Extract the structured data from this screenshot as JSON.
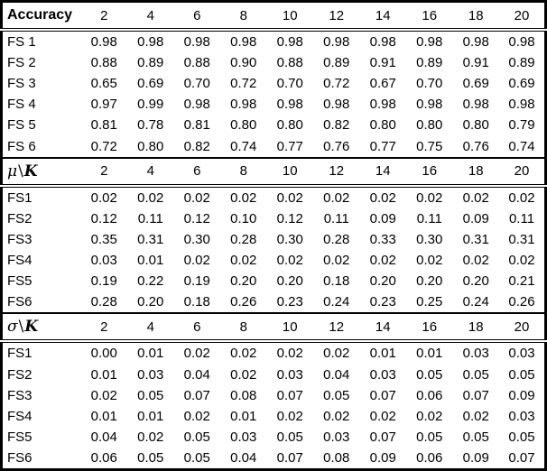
{
  "table": {
    "colors": {
      "text": "#000000",
      "background": "#ffffff",
      "border": "#000000"
    },
    "column_headers": [
      "2",
      "4",
      "6",
      "8",
      "10",
      "12",
      "14",
      "16",
      "18",
      "20"
    ],
    "sections": [
      {
        "header": {
          "type": "text",
          "label": "Accuracy"
        },
        "rows": [
          {
            "label": "FS 1",
            "values": [
              "0.98",
              "0.98",
              "0.98",
              "0.98",
              "0.98",
              "0.98",
              "0.98",
              "0.98",
              "0.98",
              "0.98"
            ]
          },
          {
            "label": "FS 2",
            "values": [
              "0.88",
              "0.89",
              "0.88",
              "0.90",
              "0.88",
              "0.89",
              "0.91",
              "0.89",
              "0.91",
              "0.89"
            ]
          },
          {
            "label": "FS 3",
            "values": [
              "0.65",
              "0.69",
              "0.70",
              "0.72",
              "0.70",
              "0.72",
              "0.67",
              "0.70",
              "0.69",
              "0.69"
            ]
          },
          {
            "label": "FS 4",
            "values": [
              "0.97",
              "0.99",
              "0.98",
              "0.98",
              "0.98",
              "0.98",
              "0.98",
              "0.98",
              "0.98",
              "0.98"
            ]
          },
          {
            "label": "FS 5",
            "values": [
              "0.81",
              "0.78",
              "0.81",
              "0.80",
              "0.80",
              "0.82",
              "0.80",
              "0.80",
              "0.80",
              "0.79"
            ]
          },
          {
            "label": "FS 6",
            "values": [
              "0.72",
              "0.80",
              "0.82",
              "0.74",
              "0.77",
              "0.76",
              "0.77",
              "0.75",
              "0.76",
              "0.74"
            ]
          }
        ]
      },
      {
        "header": {
          "type": "math",
          "symbol": "μ",
          "separator": "\\",
          "variable": "K"
        },
        "rows": [
          {
            "label": "FS1",
            "values": [
              "0.02",
              "0.02",
              "0.02",
              "0.02",
              "0.02",
              "0.02",
              "0.02",
              "0.02",
              "0.02",
              "0.02"
            ]
          },
          {
            "label": "FS2",
            "values": [
              "0.12",
              "0.11",
              "0.12",
              "0.10",
              "0.12",
              "0.11",
              "0.09",
              "0.11",
              "0.09",
              "0.11"
            ]
          },
          {
            "label": "FS3",
            "values": [
              "0.35",
              "0.31",
              "0.30",
              "0.28",
              "0.30",
              "0.28",
              "0.33",
              "0.30",
              "0.31",
              "0.31"
            ]
          },
          {
            "label": "FS4",
            "values": [
              "0.03",
              "0.01",
              "0.02",
              "0.02",
              "0.02",
              "0.02",
              "0.02",
              "0.02",
              "0.02",
              "0.02"
            ]
          },
          {
            "label": "FS5",
            "values": [
              "0.19",
              "0.22",
              "0.19",
              "0.20",
              "0.20",
              "0.18",
              "0.20",
              "0.20",
              "0.20",
              "0.21"
            ]
          },
          {
            "label": "FS6",
            "values": [
              "0.28",
              "0.20",
              "0.18",
              "0.26",
              "0.23",
              "0.24",
              "0.23",
              "0.25",
              "0.24",
              "0.26"
            ]
          }
        ]
      },
      {
        "header": {
          "type": "math",
          "symbol": "σ",
          "separator": "\\",
          "variable": "K"
        },
        "rows": [
          {
            "label": "FS1",
            "values": [
              "0.00",
              "0.01",
              "0.02",
              "0.02",
              "0.02",
              "0.02",
              "0.01",
              "0.01",
              "0.03",
              "0.03"
            ]
          },
          {
            "label": "FS2",
            "values": [
              "0.01",
              "0.03",
              "0.04",
              "0.02",
              "0.03",
              "0.04",
              "0.03",
              "0.05",
              "0.05",
              "0.05"
            ]
          },
          {
            "label": "FS3",
            "values": [
              "0.02",
              "0.05",
              "0.07",
              "0.08",
              "0.07",
              "0.05",
              "0.07",
              "0.06",
              "0.07",
              "0.09"
            ]
          },
          {
            "label": "FS4",
            "values": [
              "0.01",
              "0.01",
              "0.02",
              "0.01",
              "0.02",
              "0.02",
              "0.02",
              "0.02",
              "0.02",
              "0.03"
            ]
          },
          {
            "label": "FS5",
            "values": [
              "0.04",
              "0.02",
              "0.05",
              "0.03",
              "0.05",
              "0.03",
              "0.07",
              "0.05",
              "0.05",
              "0.05"
            ]
          },
          {
            "label": "FS6",
            "values": [
              "0.06",
              "0.05",
              "0.05",
              "0.04",
              "0.07",
              "0.08",
              "0.09",
              "0.06",
              "0.09",
              "0.07"
            ]
          }
        ]
      }
    ]
  }
}
